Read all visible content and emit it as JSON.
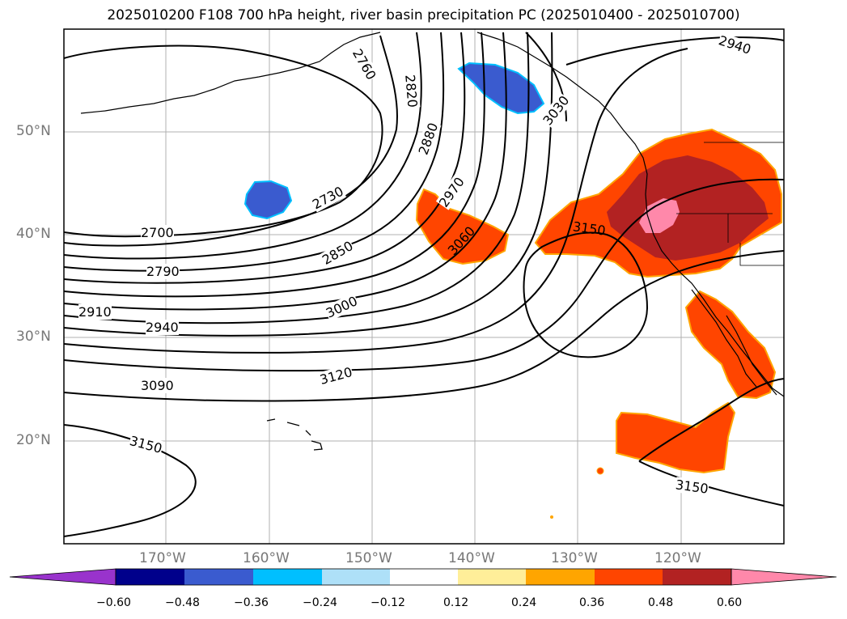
{
  "title": "2025010200 F108 700 hPa height, river basin precipitation PC (2025010400 - 2025010700)",
  "lat_labels": [
    "50°N",
    "40°N",
    "30°N",
    "20°N"
  ],
  "lon_labels": [
    "170°W",
    "160°W",
    "150°W",
    "140°W",
    "130°W",
    "120°W"
  ],
  "contour_labels": [
    "2700",
    "2730",
    "2760",
    "2790",
    "2820",
    "2850",
    "2880",
    "2910",
    "2940",
    "2970",
    "3000",
    "3030",
    "3060",
    "3090",
    "3120",
    "3150",
    "2940",
    "3150",
    "3150"
  ],
  "colorbar": {
    "ticks": [
      "−0.60",
      "−0.48",
      "−0.36",
      "−0.24",
      "−0.12",
      "0.12",
      "0.24",
      "0.36",
      "0.48",
      "0.60"
    ],
    "colors": [
      "#9933cc",
      "#00008b",
      "#3a5bcf",
      "#00bfff",
      "#aee0f8",
      "#ffffff",
      "#ffee99",
      "#ffa500",
      "#ff4500",
      "#b22222",
      "#ff88aa"
    ]
  },
  "layers": {
    "coastline_color": "#000000",
    "contour_color": "#000000",
    "grid_color": "#b0b0b0",
    "land_fill": "none"
  }
}
